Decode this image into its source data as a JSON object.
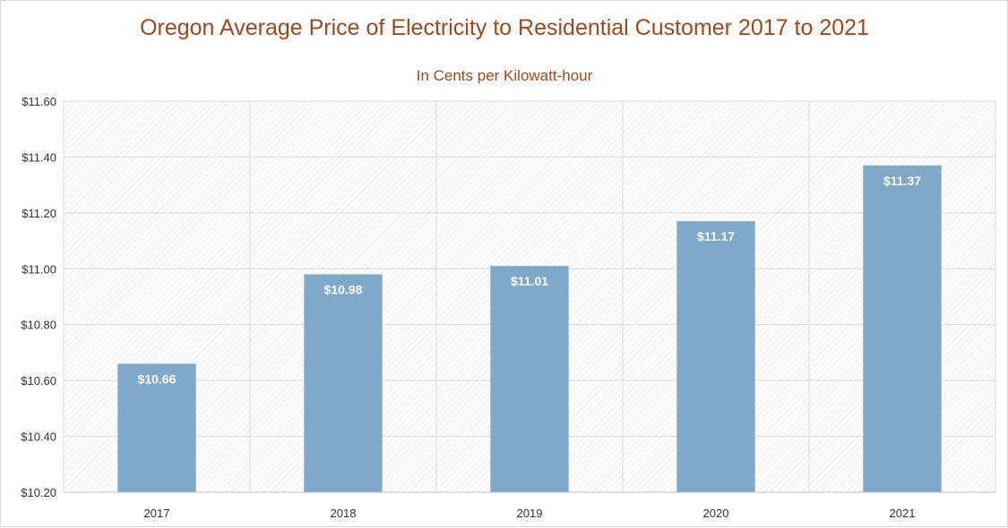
{
  "chart_data": {
    "type": "bar",
    "title": "Oregon Average Price of Electricity to Residential Customer 2017 to 2021",
    "subtitle": "In Cents per Kilowatt-hour",
    "categories": [
      "2017",
      "2018",
      "2019",
      "2020",
      "2021"
    ],
    "values": [
      10.66,
      10.98,
      11.01,
      11.17,
      11.37
    ],
    "data_labels": [
      "$10.66",
      "$10.98",
      "$11.01",
      "$11.17",
      "$11.37"
    ],
    "ylim": [
      10.2,
      11.6
    ],
    "yticks": [
      10.2,
      10.4,
      10.6,
      10.8,
      11.0,
      11.2,
      11.4,
      11.6
    ],
    "ytick_labels": [
      "$10.20",
      "$10.40",
      "$10.60",
      "$10.80",
      "$11.00",
      "$11.20",
      "$11.40",
      "$11.60"
    ],
    "xlabel": "",
    "ylabel": "",
    "grid": true,
    "colors": {
      "bar": "#7fa9c8",
      "title": "#9b4a1f",
      "grid": "#d9d9d9",
      "hatch": "#dcdcdc",
      "label": "#ffffff",
      "axis_text": "#333333"
    }
  }
}
